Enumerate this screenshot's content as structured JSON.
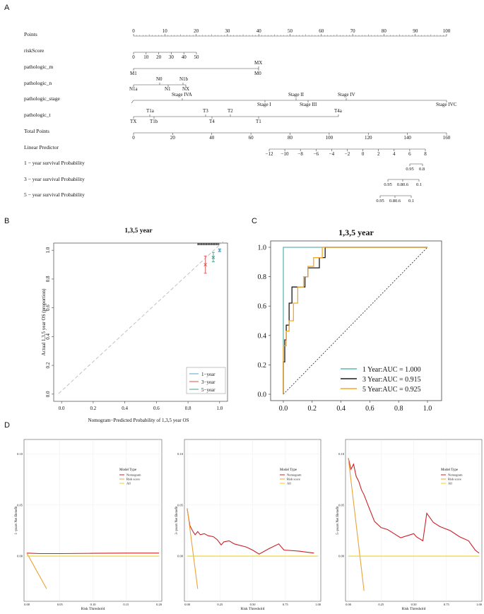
{
  "panel_labels": {
    "a": "A",
    "b": "B",
    "c": "C",
    "d": "D"
  },
  "nomogram": {
    "rows": [
      {
        "label": "Points"
      },
      {
        "label": "riskScore"
      },
      {
        "label": "pathologic_m"
      },
      {
        "label": "pathologic_n"
      },
      {
        "label": "pathologic_stage"
      },
      {
        "label": "pathologic_t"
      },
      {
        "label": "Total Points"
      },
      {
        "label": "Linear Predictor"
      },
      {
        "label": "1 − year survival Probability"
      },
      {
        "label": "3 − year survival Probability"
      },
      {
        "label": "5 − year survival Probability"
      }
    ],
    "points_ticks": [
      "0",
      "10",
      "20",
      "30",
      "40",
      "50",
      "60",
      "70",
      "80",
      "90",
      "100"
    ],
    "riskscore_ticks": [
      "0",
      "10",
      "20",
      "30",
      "40",
      "50"
    ],
    "pathologic_m": {
      "above": [
        "MX"
      ],
      "below": [
        "M1",
        "M0"
      ]
    },
    "pathologic_n": {
      "above": [
        "N0",
        "N1b"
      ],
      "below": [
        "N1a",
        "N1",
        "NX"
      ]
    },
    "pathologic_stage": {
      "above": [
        "Stage IVA",
        "Stage II",
        "Stage IV"
      ],
      "below": [
        "Stage I",
        "Stage III",
        "Stage IVC"
      ]
    },
    "pathologic_t": {
      "above": [
        "T1a",
        "T3",
        "T2",
        "T4a"
      ],
      "below": [
        "TX",
        "T1b",
        "T4",
        "T1"
      ]
    },
    "total_ticks": [
      "0",
      "20",
      "40",
      "60",
      "80",
      "100",
      "120",
      "140",
      "160"
    ],
    "lp_ticks": [
      "−12",
      "−10",
      "−8",
      "−6",
      "−4",
      "−2",
      "0",
      "2",
      "4",
      "6",
      "8"
    ],
    "surv1_ticks": [
      "0.95",
      "0.8"
    ],
    "surv3_ticks": [
      "0.95",
      "0.80.6",
      "0.1"
    ],
    "surv5_ticks": [
      "0.95",
      "0.80.6",
      "0.1"
    ]
  },
  "chart_data": [
    {
      "type": "scatter",
      "title": "1,3,5 year",
      "xlabel": "Nomogram−Predicted Probability of 1,3,5 year OS",
      "ylabel": "Actual 1,3,5 year OS (proportion)",
      "xlim": [
        -0.05,
        1.05
      ],
      "ylim": [
        -0.05,
        1.05
      ],
      "x_ticks": [
        "0.0",
        "0.2",
        "0.4",
        "0.6",
        "0.8",
        "1.0"
      ],
      "y_ticks": [
        "0.0",
        "0.2",
        "0.4",
        "0.6",
        "0.8",
        "1.0"
      ],
      "legend": [
        "1−year",
        "3−year",
        "5−year"
      ],
      "series": [
        {
          "name": "1−year",
          "color": "#5aa0c8",
          "points": [
            {
              "x": 1.0,
              "y": 1.0,
              "lo": 0.99,
              "hi": 1.01
            }
          ]
        },
        {
          "name": "3−year",
          "color": "#d9534f",
          "points": [
            {
              "x": 0.91,
              "y": 0.9,
              "lo": 0.84,
              "hi": 0.96
            }
          ]
        },
        {
          "name": "5−year",
          "color": "#3fa58a",
          "points": [
            {
              "x": 0.96,
              "y": 0.95,
              "lo": 0.92,
              "hi": 0.985
            }
          ]
        }
      ]
    },
    {
      "type": "line",
      "title": "1,3,5 year",
      "xlim": [
        0,
        1
      ],
      "ylim": [
        0,
        1
      ],
      "x_ticks": [
        "0.0",
        "0.2",
        "0.4",
        "0.6",
        "0.8",
        "1.0"
      ],
      "y_ticks": [
        "0.0",
        "0.2",
        "0.4",
        "0.6",
        "0.8",
        "1.0"
      ],
      "legend": [
        "1 Year:AUC = 1.000",
        "3 Year:AUC = 0.915",
        "5 Year:AUC = 0.925"
      ],
      "series": [
        {
          "name": "1 Year",
          "auc": 1.0,
          "color": "#5fb8b0",
          "points": [
            [
              0,
              0
            ],
            [
              0,
              1
            ],
            [
              1,
              1
            ]
          ]
        },
        {
          "name": "3 Year",
          "auc": 0.915,
          "color": "#1a1a1a",
          "points": [
            [
              0,
              0
            ],
            [
              0,
              0.22
            ],
            [
              0.01,
              0.22
            ],
            [
              0.01,
              0.37
            ],
            [
              0.02,
              0.37
            ],
            [
              0.02,
              0.47
            ],
            [
              0.04,
              0.47
            ],
            [
              0.04,
              0.62
            ],
            [
              0.06,
              0.62
            ],
            [
              0.06,
              0.73
            ],
            [
              0.15,
              0.73
            ],
            [
              0.15,
              0.8
            ],
            [
              0.17,
              0.8
            ],
            [
              0.17,
              0.86
            ],
            [
              0.25,
              0.86
            ],
            [
              0.25,
              0.93
            ],
            [
              0.29,
              0.93
            ],
            [
              0.29,
              1.0
            ],
            [
              1,
              1
            ]
          ]
        },
        {
          "name": "5 Year",
          "auc": 0.925,
          "color": "#f5a623",
          "points": [
            [
              0,
              0
            ],
            [
              0,
              0.33
            ],
            [
              0.02,
              0.33
            ],
            [
              0.02,
              0.43
            ],
            [
              0.04,
              0.43
            ],
            [
              0.04,
              0.5
            ],
            [
              0.07,
              0.5
            ],
            [
              0.07,
              0.62
            ],
            [
              0.1,
              0.62
            ],
            [
              0.1,
              0.73
            ],
            [
              0.14,
              0.73
            ],
            [
              0.14,
              0.8
            ],
            [
              0.17,
              0.8
            ],
            [
              0.17,
              0.87
            ],
            [
              0.21,
              0.87
            ],
            [
              0.21,
              0.93
            ],
            [
              0.27,
              0.93
            ],
            [
              0.27,
              1.0
            ],
            [
              1,
              1
            ]
          ]
        }
      ]
    },
    {
      "type": "line",
      "ylabel": "1−years Net Benefit",
      "xlabel": "Risk Threshold",
      "xlim": [
        0,
        0.2
      ],
      "ylim": [
        -0.04,
        0.11
      ],
      "x_ticks": [
        0,
        0.05,
        0.1,
        0.15,
        0.2
      ],
      "x_tick_labels": [
        "0.00",
        "0.05",
        "0.10",
        "0.15",
        "0.20"
      ],
      "y_ticks": [
        0,
        0.05,
        0.1
      ],
      "y_tick_labels": [
        "0.00",
        "0.05",
        "0.10"
      ],
      "legend_title": "Model Type",
      "legend": [
        "Nomogram",
        "Risk score",
        "All"
      ],
      "series": [
        {
          "name": "Nomogram",
          "color": "#cc2027",
          "points": [
            [
              0,
              0.003
            ],
            [
              0.02,
              0.0025
            ],
            [
              0.05,
              0.0025
            ],
            [
              0.1,
              0.0028
            ],
            [
              0.15,
              0.003
            ],
            [
              0.2,
              0.003
            ]
          ]
        },
        {
          "name": "Risk score",
          "color": "#e8a33a",
          "points": [
            [
              0,
              0.003
            ],
            [
              0.03,
              -0.032
            ]
          ]
        },
        {
          "name": "All",
          "color": "#f2d11a",
          "points": [
            [
              0,
              0
            ],
            [
              0.2,
              0
            ]
          ]
        }
      ]
    },
    {
      "type": "line",
      "ylabel": "3−years Net Benefit",
      "xlabel": "Risk Threshold",
      "xlim": [
        0,
        1
      ],
      "ylim": [
        -0.04,
        0.11
      ],
      "x_ticks": [
        0,
        0.25,
        0.5,
        0.75,
        1.0
      ],
      "x_tick_labels": [
        "0.00",
        "0.25",
        "0.50",
        "0.75",
        "1.00"
      ],
      "y_ticks": [
        0,
        0.05,
        0.1
      ],
      "y_tick_labels": [
        "0.00",
        "0.05",
        "0.10"
      ],
      "legend_title": "Model Type",
      "legend": [
        "Nomogram",
        "Risk score",
        "All"
      ],
      "series": [
        {
          "name": "Nomogram",
          "color": "#cc2027",
          "points": [
            [
              0,
              0.046
            ],
            [
              0.02,
              0.03
            ],
            [
              0.04,
              0.025
            ],
            [
              0.06,
              0.021
            ],
            [
              0.08,
              0.024
            ],
            [
              0.1,
              0.021
            ],
            [
              0.13,
              0.022
            ],
            [
              0.16,
              0.02
            ],
            [
              0.2,
              0.019
            ],
            [
              0.23,
              0.016
            ],
            [
              0.26,
              0.011
            ],
            [
              0.28,
              0.014
            ],
            [
              0.32,
              0.015
            ],
            [
              0.36,
              0.012
            ],
            [
              0.45,
              0.009
            ],
            [
              0.5,
              0.006
            ],
            [
              0.55,
              0.002
            ],
            [
              0.62,
              0.007
            ],
            [
              0.7,
              0.012
            ],
            [
              0.74,
              0.006
            ],
            [
              0.85,
              0.005
            ],
            [
              0.97,
              0.003
            ]
          ]
        },
        {
          "name": "Risk score",
          "color": "#e8a33a",
          "points": [
            [
              0,
              0.047
            ],
            [
              0.08,
              -0.032
            ]
          ]
        },
        {
          "name": "All",
          "color": "#f2d11a",
          "points": [
            [
              0,
              0
            ],
            [
              1,
              0
            ]
          ]
        }
      ]
    },
    {
      "type": "line",
      "ylabel": "5−years Net Benefit",
      "xlabel": "Risk Threshold",
      "xlim": [
        0,
        1
      ],
      "ylim": [
        -0.04,
        0.11
      ],
      "x_ticks": [
        0,
        0.25,
        0.5,
        0.75,
        1.0
      ],
      "x_tick_labels": [
        "0.00",
        "0.25",
        "0.50",
        "0.75",
        "1.00"
      ],
      "y_ticks": [
        0,
        0.05,
        0.1
      ],
      "y_tick_labels": [
        "0.00",
        "0.05",
        "0.10"
      ],
      "legend_title": "Model Type",
      "legend": [
        "Nomogram",
        "Risk score",
        "All"
      ],
      "series": [
        {
          "name": "Nomogram",
          "color": "#cc2027",
          "points": [
            [
              0,
              0.096
            ],
            [
              0.02,
              0.085
            ],
            [
              0.04,
              0.09
            ],
            [
              0.06,
              0.078
            ],
            [
              0.08,
              0.073
            ],
            [
              0.1,
              0.065
            ],
            [
              0.12,
              0.06
            ],
            [
              0.15,
              0.05
            ],
            [
              0.2,
              0.034
            ],
            [
              0.25,
              0.028
            ],
            [
              0.3,
              0.026
            ],
            [
              0.35,
              0.022
            ],
            [
              0.4,
              0.018
            ],
            [
              0.45,
              0.02
            ],
            [
              0.5,
              0.022
            ],
            [
              0.52,
              0.019
            ],
            [
              0.57,
              0.015
            ],
            [
              0.6,
              0.042
            ],
            [
              0.65,
              0.033
            ],
            [
              0.7,
              0.029
            ],
            [
              0.78,
              0.025
            ],
            [
              0.85,
              0.019
            ],
            [
              0.92,
              0.015
            ],
            [
              0.97,
              0.006
            ],
            [
              1.0,
              0.003
            ]
          ]
        },
        {
          "name": "Risk score",
          "color": "#e8a33a",
          "points": [
            [
              0,
              0.096
            ],
            [
              0.12,
              -0.034
            ]
          ]
        },
        {
          "name": "All",
          "color": "#f2d11a",
          "points": [
            [
              0,
              0
            ],
            [
              1,
              0
            ]
          ]
        }
      ]
    }
  ]
}
